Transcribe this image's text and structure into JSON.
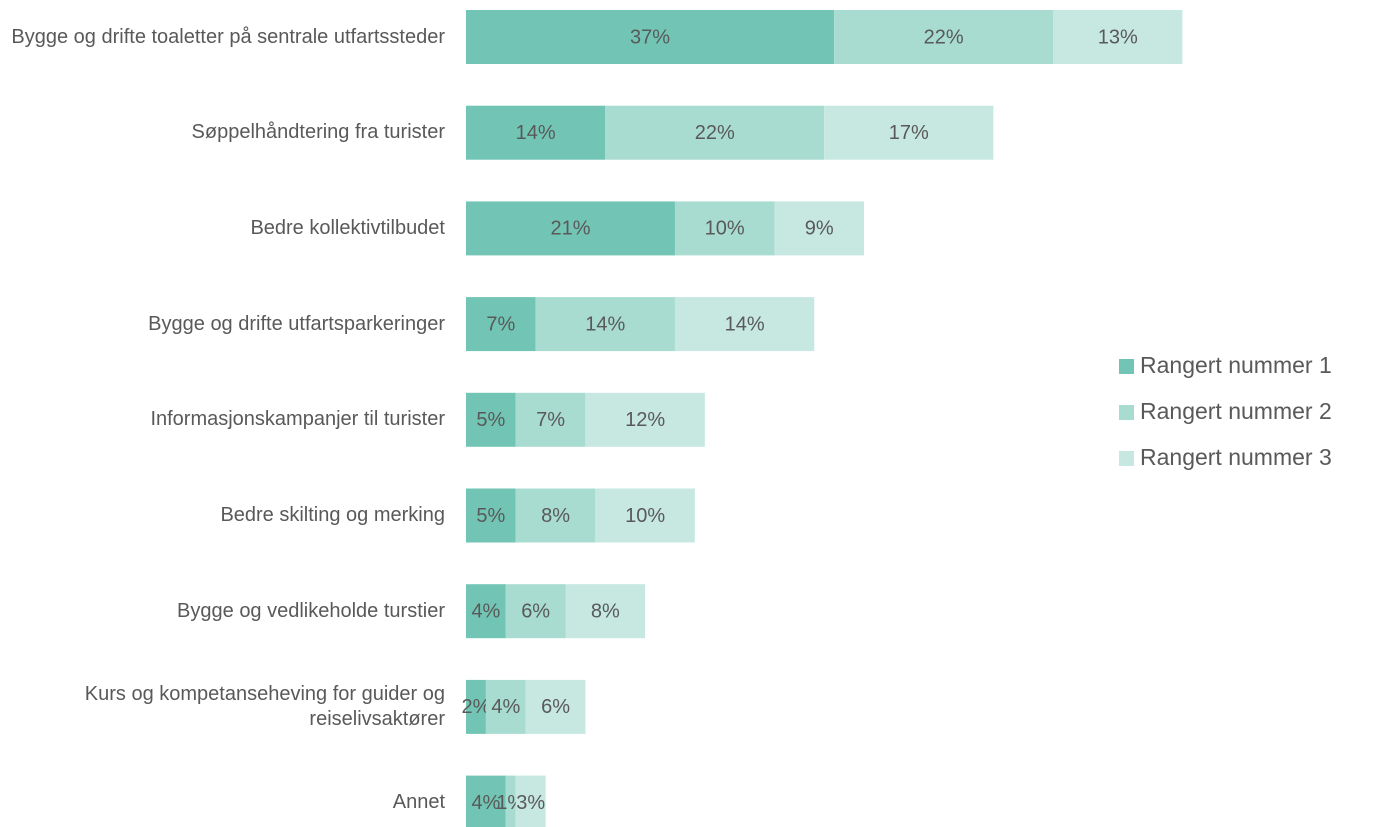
{
  "chart_data": {
    "type": "stacked-barh",
    "categories": [
      "Bygge og drifte toaletter på sentrale utfartssteder",
      "Søppelhåndtering fra turister",
      "Bedre kollektivtilbudet",
      "Bygge og drifte utfartsparkeringer",
      "Informasjonskampanjer til turister",
      "Bedre skilting og merking",
      "Bygge og vedlikeholde turstier",
      "Kurs og kompetanseheving for guider og reiselivsaktører",
      "Annet"
    ],
    "series": [
      {
        "name": "Rangert nummer 1",
        "color": "#72c5b4",
        "values": [
          37,
          14,
          21,
          7,
          5,
          5,
          4,
          2,
          4
        ],
        "value_labels": [
          "37%",
          "14%",
          "21%",
          "7%",
          "5%",
          "5%",
          "4%",
          "2%",
          "4%"
        ]
      },
      {
        "name": "Rangert nummer 2",
        "color": "#a8dcd1",
        "values": [
          22,
          22,
          10,
          14,
          7,
          8,
          6,
          4,
          1
        ],
        "value_labels": [
          "22%",
          "22%",
          "10%",
          "14%",
          "7%",
          "8%",
          "6%",
          "4%",
          "1%"
        ]
      },
      {
        "name": "Rangert nummer 3",
        "color": "#c6e8e1",
        "values": [
          13,
          17,
          9,
          14,
          12,
          10,
          8,
          6,
          3
        ],
        "value_labels": [
          "13%",
          "17%",
          "9%",
          "14%",
          "12%",
          "10%",
          "8%",
          "6%",
          "3%"
        ]
      }
    ],
    "legend": "right"
  }
}
